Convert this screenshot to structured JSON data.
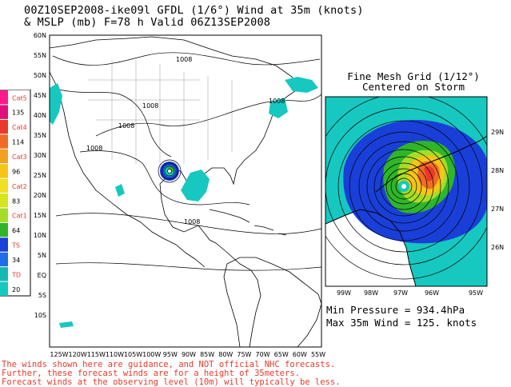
{
  "header": {
    "title_line1": "00Z10SEP2008-ike09l GFDL (1/6°) Wind at 35m (knots)",
    "title_line2": "& MSLP (mb) F=78 h Valid 06Z13SEP2008"
  },
  "main_map": {
    "lat_labels": [
      "60N",
      "55N",
      "50N",
      "45N",
      "40N",
      "35N",
      "30N",
      "25N",
      "20N",
      "15N",
      "10N",
      "5N",
      "EQ",
      "5S",
      "10S"
    ],
    "lon_labels": [
      "125W",
      "120W",
      "115W",
      "110W",
      "105W",
      "100W",
      "95W",
      "90W",
      "85W",
      "80W",
      "75W",
      "70W",
      "65W",
      "60W",
      "55W"
    ],
    "isobar_labels": [
      "1008",
      "1008",
      "1008",
      "1008",
      "1008",
      "1008"
    ]
  },
  "legend": {
    "items": [
      {
        "label": "Cat5",
        "color": "#ff1a8c",
        "category": true
      },
      {
        "label": "135",
        "color": "#e0107a",
        "category": false
      },
      {
        "label": "Cat4",
        "color": "#e8392a",
        "category": true
      },
      {
        "label": "114",
        "color": "#f26b24",
        "category": false
      },
      {
        "label": "Cat3",
        "color": "#f5a020",
        "category": true
      },
      {
        "label": "96",
        "color": "#f5c518",
        "category": false
      },
      {
        "label": "Cat2",
        "color": "#f0e020",
        "category": true
      },
      {
        "label": "83",
        "color": "#d6e61e",
        "category": false
      },
      {
        "label": "Cat1",
        "color": "#a6dc28",
        "category": true
      },
      {
        "label": "64",
        "color": "#2fb52a",
        "category": false
      },
      {
        "label": "TS",
        "color": "#1a3fd8",
        "category": true
      },
      {
        "label": "34",
        "color": "#1f6ee8",
        "category": false
      },
      {
        "label": "TD",
        "color": "#16b8b4",
        "category": true
      },
      {
        "label": "20",
        "color": "#16c8c0",
        "category": false
      }
    ]
  },
  "inset": {
    "title_line1": "Fine Mesh Grid (1/12°)",
    "title_line2": "Centered on Storm",
    "lat_labels": [
      "29N",
      "28N",
      "27N",
      "26N"
    ],
    "lon_labels": [
      "99W",
      "98W",
      "97W",
      "96W",
      "95W"
    ]
  },
  "stats": {
    "min_pressure": "Min Pressure = 934.4hPa",
    "max_wind": "Max 35m Wind = 125. knots"
  },
  "disclaimer": {
    "line1": "The winds shown here are guidance, and NOT official NHC forecasts.",
    "line2": "Further, these forecast winds are for a height of 35meters.",
    "line3": "Forecast winds at the observing level (10m) will typically be less."
  }
}
